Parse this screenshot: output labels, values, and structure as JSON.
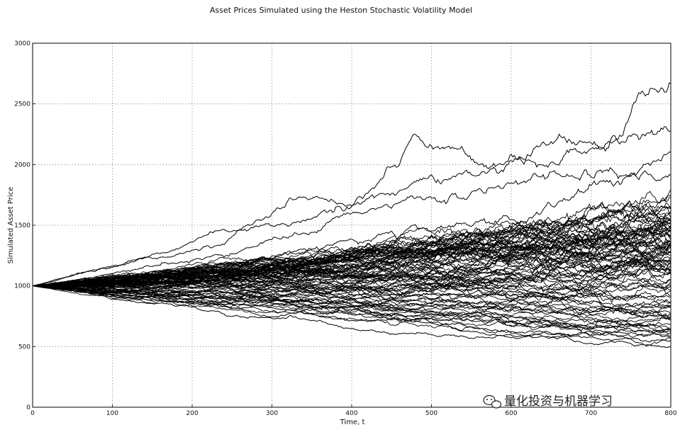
{
  "chart_data": {
    "type": "line",
    "title": "Asset Prices Simulated using the Heston Stochastic Volatility Model",
    "xlabel": "Time, t",
    "ylabel": "Simulated Asset Price",
    "xlim": [
      0,
      800
    ],
    "ylim": [
      0,
      3000
    ],
    "x_ticks": [
      "0",
      "100",
      "200",
      "300",
      "400",
      "500",
      "600",
      "700",
      "800"
    ],
    "y_ticks": [
      "0",
      "500",
      "1000",
      "1500",
      "2000",
      "2500",
      "3000"
    ],
    "grid": true,
    "legend": "none",
    "line_color": "#000000",
    "initial_price": 1000,
    "time_steps": 800,
    "path_count": 100,
    "series": [
      {
        "values": [
          1000,
          1120,
          1240,
          1380,
          1540,
          1700,
          2200,
          1950,
          2150,
          2250,
          2580
        ]
      },
      {
        "values": [
          1000,
          1100,
          1200,
          1320,
          1700,
          1620,
          1800,
          1850,
          2000,
          2100,
          2150
        ]
      },
      {
        "values": [
          1000,
          1080,
          1150,
          1260,
          1400,
          1500,
          1650,
          1750,
          1850,
          1900,
          1950
        ]
      },
      {
        "values": [
          1000,
          1050,
          1100,
          1180,
          1260,
          1350,
          1450,
          1550,
          1650,
          1750,
          1850
        ]
      },
      {
        "values": [
          1000,
          1040,
          1080,
          1120,
          1180,
          1240,
          1300,
          1380,
          1450,
          1520,
          1600
        ]
      },
      {
        "values": [
          1000,
          1020,
          1040,
          1070,
          1100,
          1140,
          1180,
          1220,
          1260,
          1300,
          1350
        ]
      },
      {
        "values": [
          1000,
          1010,
          1020,
          1030,
          1040,
          1060,
          1080,
          1100,
          1120,
          1140,
          1160
        ]
      },
      {
        "values": [
          1000,
          990,
          980,
          970,
          960,
          950,
          940,
          930,
          920,
          910,
          900
        ]
      },
      {
        "values": [
          1000,
          970,
          940,
          910,
          880,
          850,
          820,
          800,
          780,
          760,
          740
        ]
      },
      {
        "values": [
          1000,
          950,
          900,
          860,
          820,
          780,
          750,
          720,
          690,
          660,
          640
        ]
      },
      {
        "values": [
          1000,
          930,
          870,
          820,
          770,
          730,
          690,
          650,
          620,
          590,
          570
        ]
      },
      {
        "values": [
          1000,
          920,
          850,
          790,
          740,
          690,
          650,
          610,
          580,
          550,
          520
        ]
      },
      {
        "values": [
          1000,
          960,
          920,
          880,
          850,
          800,
          720,
          640,
          590,
          550,
          510
        ]
      }
    ]
  },
  "watermark": {
    "label": "量化投资与机器学习",
    "icon": "wechat-icon"
  }
}
